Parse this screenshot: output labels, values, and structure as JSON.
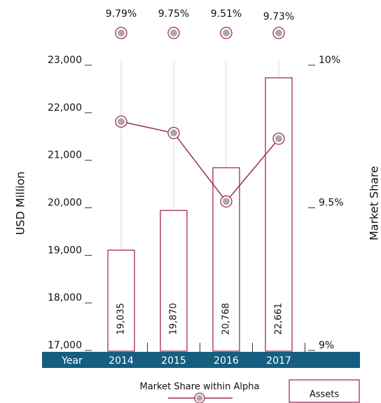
{
  "chart_data": {
    "type": "bar",
    "categories": [
      "2014",
      "2015",
      "2016",
      "2017"
    ],
    "x_label": "Year",
    "ylabel": "USD Million",
    "y2label": "Market Share",
    "series": [
      {
        "name": "Assets",
        "type": "bar",
        "color": "#a3295c",
        "values": [
          19035,
          19870,
          20768,
          22661
        ],
        "value_labels": [
          "19,035",
          "19,870",
          "20,768",
          "22,661"
        ]
      },
      {
        "name": "Market Share within Alpha",
        "type": "line",
        "axis": "y2",
        "color": "#9b2a5a",
        "values": [
          9.79,
          9.75,
          9.51,
          9.73
        ],
        "value_labels": [
          "9.79%",
          "9.75%",
          "9.51%",
          "9.73%"
        ]
      }
    ],
    "ylim": [
      17000,
      23000
    ],
    "yticks": [
      {
        "value": 17000,
        "label": "17,000"
      },
      {
        "value": 18000,
        "label": "18,000"
      },
      {
        "value": 19000,
        "label": "19,000"
      },
      {
        "value": 20000,
        "label": "20,000"
      },
      {
        "value": 21000,
        "label": "21,000"
      },
      {
        "value": 22000,
        "label": "22,000"
      },
      {
        "value": 23000,
        "label": "23,000"
      }
    ],
    "y2lim": [
      9,
      10
    ],
    "y2ticks": [
      {
        "value": 9,
        "label": "9%"
      },
      {
        "value": 9.5,
        "label": "9.5%"
      },
      {
        "value": 10,
        "label": "10%"
      }
    ],
    "band_color": "#155e80",
    "legend": "bottom"
  }
}
